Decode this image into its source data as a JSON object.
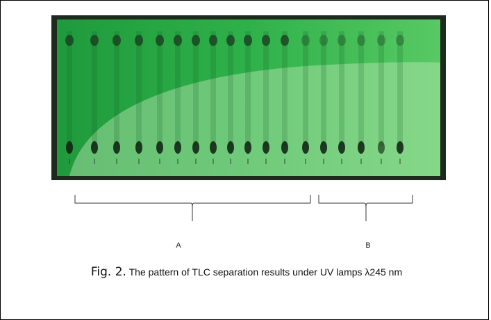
{
  "figure": {
    "bracket_labels": [
      "A",
      "B"
    ],
    "label": "Fig. 2.",
    "caption": "The pattern of TLC separation results under UV lamps λ245 nm"
  }
}
